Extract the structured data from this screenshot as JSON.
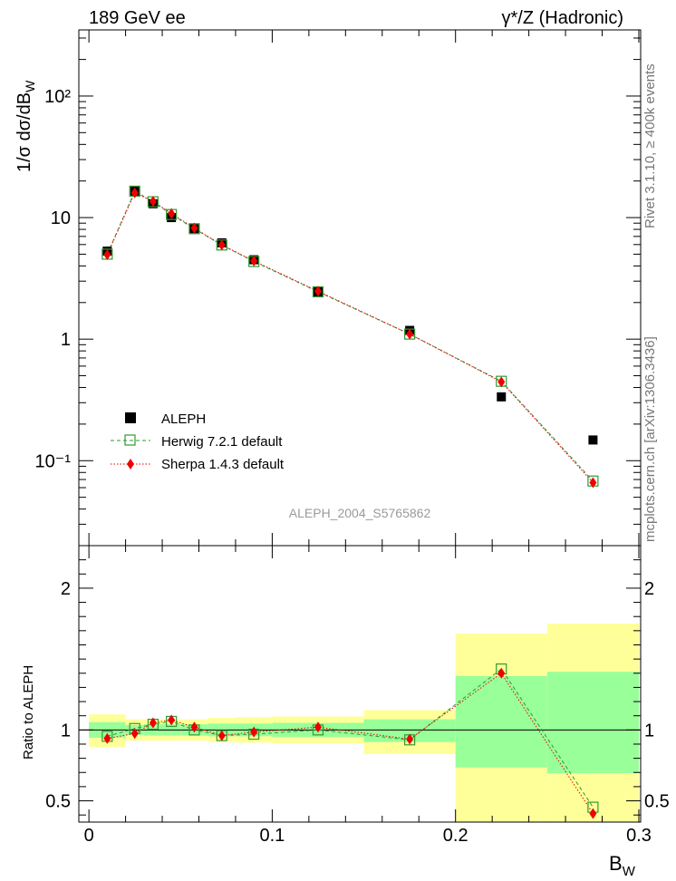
{
  "header": {
    "left": "189 GeV ee",
    "right": "γ*/Z (Hadronic)"
  },
  "side_labels": {
    "rivet": "Rivet 3.1.10, ≥ 400k events",
    "mcplots": "mcplots.cern.ch [arXiv:1306.3436]"
  },
  "analysis_tag": "ALEPH_2004_S5765862",
  "colors": {
    "data": "#000000",
    "herwig": "#339933",
    "sherpa": "#ee0000",
    "band_inner": "#99ff99",
    "band_outer": "#ffff99",
    "tag": "#9a9a9a"
  },
  "chart_data": [
    {
      "type": "scatter",
      "panel": "main",
      "ylabel": "1/σ dσ/dB_W",
      "yscale": "log",
      "ylim": [
        0.02,
        350
      ],
      "xlim": [
        -0.0055,
        0.301
      ],
      "yticks_major": [
        0.1,
        1,
        10,
        100
      ],
      "ytick_labels": [
        "10⁻¹",
        "1",
        "10",
        "10²"
      ],
      "legend": {
        "placement": "lower-left",
        "entries": [
          "ALEPH",
          "Herwig 7.2.1 default",
          "Sherpa 1.4.3 default"
        ]
      },
      "x": [
        0.01,
        0.025,
        0.035,
        0.045,
        0.0575,
        0.0725,
        0.09,
        0.125,
        0.175,
        0.225,
        0.275
      ],
      "series": [
        {
          "name": "ALEPH",
          "marker": "filled-square",
          "values": [
            5.3,
            16.5,
            13.0,
            10.0,
            8.1,
            6.2,
            4.5,
            2.45,
            1.18,
            0.335,
            0.148
          ]
        },
        {
          "name": "Herwig 7.2.1 default",
          "marker": "open-square",
          "line": "dashed",
          "values": [
            5.0,
            16.5,
            13.5,
            10.6,
            8.1,
            5.95,
            4.35,
            2.45,
            1.1,
            0.45,
            0.068
          ]
        },
        {
          "name": "Sherpa 1.4.3 default",
          "marker": "diamond",
          "line": "dotted",
          "values": [
            4.95,
            16.0,
            13.6,
            10.8,
            8.2,
            5.95,
            4.4,
            2.48,
            1.1,
            0.445,
            0.066
          ]
        }
      ]
    },
    {
      "type": "scatter",
      "panel": "ratio",
      "ylabel": "Ratio to ALEPH",
      "xlabel": "B_W",
      "ylim": [
        0.35,
        2.3
      ],
      "xlim": [
        -0.0055,
        0.301
      ],
      "yticks": [
        0.5,
        1,
        2
      ],
      "ytick_labels": [
        "0.5",
        "1",
        "2"
      ],
      "xticks": [
        0,
        0.1,
        0.2,
        0.3
      ],
      "xtick_labels": [
        "0",
        "0.1",
        "0.2",
        "0.3"
      ],
      "reference_line": 1,
      "bins": [
        {
          "lo": 0.0,
          "hi": 0.02,
          "inner": [
            0.945,
            1.055
          ],
          "outer": [
            0.88,
            1.11
          ]
        },
        {
          "lo": 0.02,
          "hi": 0.03,
          "inner": [
            0.965,
            1.035
          ],
          "outer": [
            0.925,
            1.075
          ]
        },
        {
          "lo": 0.03,
          "hi": 0.04,
          "inner": [
            0.96,
            1.04
          ],
          "outer": [
            0.925,
            1.075
          ]
        },
        {
          "lo": 0.04,
          "hi": 0.05,
          "inner": [
            0.96,
            1.04
          ],
          "outer": [
            0.925,
            1.075
          ]
        },
        {
          "lo": 0.05,
          "hi": 0.065,
          "inner": [
            0.96,
            1.04
          ],
          "outer": [
            0.925,
            1.075
          ]
        },
        {
          "lo": 0.065,
          "hi": 0.08,
          "inner": [
            0.955,
            1.045
          ],
          "outer": [
            0.915,
            1.085
          ]
        },
        {
          "lo": 0.08,
          "hi": 0.1,
          "inner": [
            0.955,
            1.045
          ],
          "outer": [
            0.91,
            1.09
          ]
        },
        {
          "lo": 0.1,
          "hi": 0.15,
          "inner": [
            0.95,
            1.05
          ],
          "outer": [
            0.905,
            1.095
          ]
        },
        {
          "lo": 0.15,
          "hi": 0.2,
          "inner": [
            0.915,
            1.075
          ],
          "outer": [
            0.83,
            1.14
          ]
        },
        {
          "lo": 0.2,
          "hi": 0.25,
          "inner": [
            0.735,
            1.38
          ],
          "outer": [
            0.35,
            1.68
          ]
        },
        {
          "lo": 0.25,
          "hi": 0.3,
          "inner": [
            0.695,
            1.41
          ],
          "outer": [
            0.35,
            1.75
          ]
        }
      ],
      "x": [
        0.01,
        0.025,
        0.035,
        0.045,
        0.0575,
        0.0725,
        0.09,
        0.125,
        0.175,
        0.225,
        0.275
      ],
      "series": [
        {
          "name": "Herwig 7.2.1 default",
          "marker": "open-square",
          "line": "dashed",
          "values": [
            0.955,
            1.01,
            1.04,
            1.06,
            1.0,
            0.96,
            0.97,
            1.0,
            0.93,
            1.43,
            0.455
          ]
        },
        {
          "name": "Sherpa 1.4.3 default",
          "marker": "diamond",
          "line": "dotted",
          "values": [
            0.94,
            0.975,
            1.05,
            1.07,
            1.02,
            0.96,
            0.985,
            1.02,
            0.935,
            1.4,
            0.41
          ]
        }
      ]
    }
  ]
}
